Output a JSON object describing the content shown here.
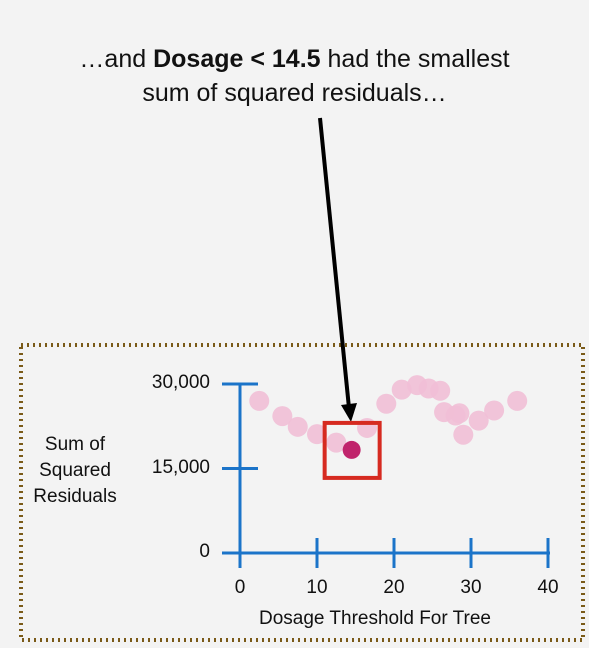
{
  "annotation": {
    "line1_prefix": "…and ",
    "line1_bold": "Dosage < 14.5",
    "line1_suffix": " had the smallest",
    "line2": "sum of squared residuals…"
  },
  "chart_data": {
    "type": "scatter",
    "xlabel": "Dosage Threshold For Tree",
    "ylabel_lines": [
      "Sum of",
      "Squared",
      "Residuals"
    ],
    "xlim": [
      0,
      40
    ],
    "ylim": [
      0,
      30000
    ],
    "x_ticks": [
      0,
      10,
      20,
      30,
      40
    ],
    "x_tick_labels": [
      "0",
      "10",
      "20",
      "30",
      "40"
    ],
    "y_ticks": [
      0,
      15000,
      30000
    ],
    "y_tick_labels": [
      "0",
      "15,000",
      "30,000"
    ],
    "grid": false,
    "series": [
      {
        "points": [
          [
            2.5,
            27000
          ],
          [
            5.5,
            24300
          ],
          [
            7.5,
            22400
          ],
          [
            10,
            21100
          ],
          [
            12.5,
            19600
          ],
          [
            14.5,
            18300
          ],
          [
            16.5,
            22200
          ],
          [
            19,
            26500
          ],
          [
            21,
            29000
          ],
          [
            23,
            29800
          ],
          [
            24.5,
            29200
          ],
          [
            26,
            28800
          ],
          [
            26.5,
            25000
          ],
          [
            28,
            24400
          ],
          [
            28.5,
            24800
          ],
          [
            29,
            21000
          ],
          [
            31,
            23500
          ],
          [
            33,
            25300
          ],
          [
            36,
            27000
          ]
        ],
        "highlight_x": 14.5
      }
    ],
    "colors": {
      "axis": "#1b74c9",
      "point": "#f1bfd6",
      "highlight_point": "#c0246c",
      "highlight_box": "#d62a20",
      "frame": "#7a5a18",
      "arrow": "#000000"
    }
  }
}
